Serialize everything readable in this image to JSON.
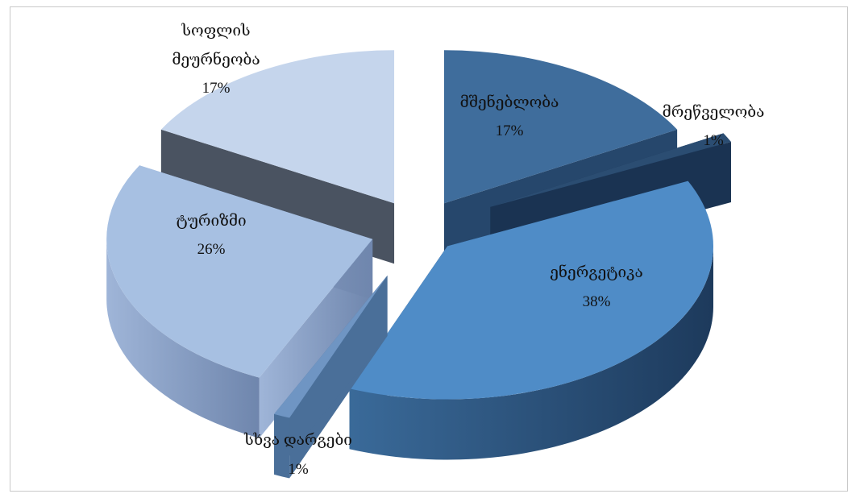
{
  "chart_data": {
    "type": "pie",
    "title": "",
    "style": "3d-exploded",
    "slices": [
      {
        "label": "მშენებლობა",
        "value": 17,
        "display": "17%",
        "color": "#3f6d9c"
      },
      {
        "label": "მრეწველობა",
        "value": 1,
        "display": "1%",
        "color": "#2b4d72"
      },
      {
        "label": "ენერგეტიკა",
        "value": 38,
        "display": "38%",
        "color": "#4f8cc7"
      },
      {
        "label": "სხვა დარგები",
        "value": 1,
        "display": "1%",
        "color": "#6f95c3"
      },
      {
        "label": "ტურიზმი",
        "value": 26,
        "display": "26%",
        "color": "#a7c0e2"
      },
      {
        "label": "სოფლის მეურნეობა",
        "value": 17,
        "display": "17%",
        "color": "#c5d5ec"
      }
    ]
  },
  "labels": {
    "construction": {
      "line1": "მშენებლობა",
      "pct": "17%"
    },
    "industry": {
      "line1": "მრეწველობა",
      "pct": "1%"
    },
    "energy": {
      "line1": "ენერგეტიკა",
      "pct": "38%"
    },
    "other": {
      "line1": "სხვა დარგები",
      "pct": "1%"
    },
    "tourism": {
      "line1": "ტურიზმი",
      "pct": "26%"
    },
    "agriculture": {
      "line1": "სოფლის",
      "line2": "მეურნეობა",
      "pct": "17%"
    }
  }
}
